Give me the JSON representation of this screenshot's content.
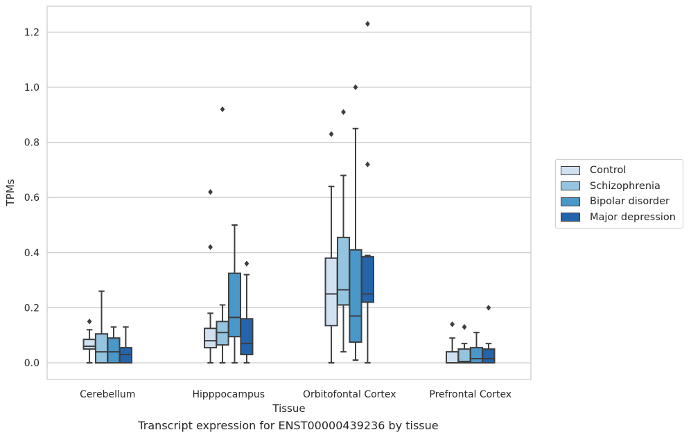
{
  "chart_data": {
    "type": "box",
    "xlabel": "Tissue",
    "ylabel": "TPMs",
    "caption": "Transcript expression for ENST00000439236 by tissue",
    "categories": [
      "Cerebellum",
      "Hipppocampus",
      "Orbitofontal Cortex",
      "Prefrontal Cortex"
    ],
    "ylim": [
      -0.06,
      1.29
    ],
    "yticks": [
      0.0,
      0.2,
      0.4,
      0.6,
      0.8,
      1.0,
      1.2
    ],
    "ytick_labels": [
      "0.0",
      "0.2",
      "0.4",
      "0.6",
      "0.8",
      "1.0",
      "1.2"
    ],
    "grid": true,
    "legend_position": "right",
    "series": [
      {
        "name": "Control",
        "color": "#d0e1f2",
        "boxes": [
          {
            "whislo": 0.0,
            "q1": 0.05,
            "med": 0.06,
            "q3": 0.085,
            "whishi": 0.12,
            "fliers": [
              0.15
            ]
          },
          {
            "whislo": 0.0,
            "q1": 0.055,
            "med": 0.08,
            "q3": 0.125,
            "whishi": 0.18,
            "fliers": [
              0.42,
              0.62
            ]
          },
          {
            "whislo": 0.0,
            "q1": 0.135,
            "med": 0.25,
            "q3": 0.38,
            "whishi": 0.64,
            "fliers": [
              0.83
            ]
          },
          {
            "whislo": 0.0,
            "q1": 0.0,
            "med": 0.0,
            "q3": 0.04,
            "whishi": 0.09,
            "fliers": [
              0.14
            ]
          }
        ]
      },
      {
        "name": "Schizophrenia",
        "color": "#94c4df",
        "boxes": [
          {
            "whislo": 0.0,
            "q1": 0.0,
            "med": 0.04,
            "q3": 0.105,
            "whishi": 0.26,
            "fliers": []
          },
          {
            "whislo": 0.0,
            "q1": 0.065,
            "med": 0.11,
            "q3": 0.15,
            "whishi": 0.21,
            "fliers": [
              0.92
            ]
          },
          {
            "whislo": 0.04,
            "q1": 0.21,
            "med": 0.265,
            "q3": 0.455,
            "whishi": 0.68,
            "fliers": [
              0.91
            ]
          },
          {
            "whislo": 0.0,
            "q1": 0.0,
            "med": 0.005,
            "q3": 0.05,
            "whishi": 0.07,
            "fliers": [
              0.13
            ]
          }
        ]
      },
      {
        "name": "Bipolar disorder",
        "color": "#4a98c9",
        "boxes": [
          {
            "whislo": 0.0,
            "q1": 0.0,
            "med": 0.04,
            "q3": 0.09,
            "whishi": 0.13,
            "fliers": []
          },
          {
            "whislo": 0.0,
            "q1": 0.095,
            "med": 0.165,
            "q3": 0.325,
            "whishi": 0.5,
            "fliers": []
          },
          {
            "whislo": 0.01,
            "q1": 0.075,
            "med": 0.17,
            "q3": 0.41,
            "whishi": 0.85,
            "fliers": [
              1.0
            ]
          },
          {
            "whislo": 0.0,
            "q1": 0.0,
            "med": 0.015,
            "q3": 0.055,
            "whishi": 0.11,
            "fliers": []
          }
        ]
      },
      {
        "name": "Major depression",
        "color": "#2464ab",
        "boxes": [
          {
            "whislo": 0.0,
            "q1": 0.0,
            "med": 0.03,
            "q3": 0.055,
            "whishi": 0.13,
            "fliers": []
          },
          {
            "whislo": 0.0,
            "q1": 0.03,
            "med": 0.07,
            "q3": 0.16,
            "whishi": 0.32,
            "fliers": [
              0.36
            ]
          },
          {
            "whislo": 0.0,
            "q1": 0.22,
            "med": 0.25,
            "q3": 0.385,
            "whishi": 0.39,
            "fliers": [
              0.72,
              1.23
            ]
          },
          {
            "whislo": 0.0,
            "q1": 0.0,
            "med": 0.015,
            "q3": 0.05,
            "whishi": 0.07,
            "fliers": [
              0.2
            ]
          }
        ]
      }
    ]
  }
}
